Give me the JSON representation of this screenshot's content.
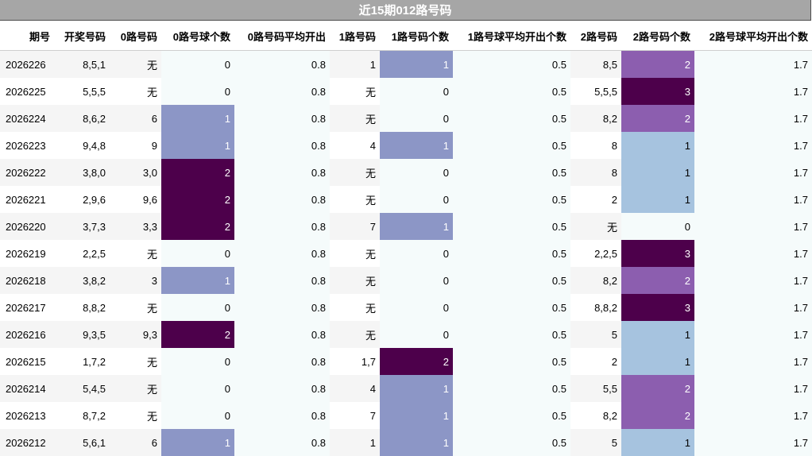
{
  "title": "近15期012路号码",
  "columns": [
    "期号",
    "开奖号码",
    "0路号码",
    "0路号球个数",
    "0路号码平均开出",
    "1路号码",
    "1路号码个数",
    "1路号球平均开出个数",
    "2路号码",
    "2路号码个数",
    "2路号球平均开出个数"
  ],
  "colors": {
    "count_1": "#8c96c6",
    "count_2": "#4d004b",
    "count_3": "#4d004b",
    "count2_1": "#a6c3df",
    "count2_2": "#8c5eaf",
    "count2_3": "#4d004b",
    "stripe_a": "#f5f5f5",
    "stripe_b": "#f5fbfb",
    "white": "#ffffff"
  },
  "chart_data": {
    "type": "table",
    "rows": [
      {
        "period": "2026226",
        "draw": "8,5,1",
        "r0": "无",
        "c0": "0",
        "a0": "0.8",
        "r1": "1",
        "c1": "1",
        "a1": "0.5",
        "r2": "8,5",
        "c2": "2",
        "a2": "1.7"
      },
      {
        "period": "2026225",
        "draw": "5,5,5",
        "r0": "无",
        "c0": "0",
        "a0": "0.8",
        "r1": "无",
        "c1": "0",
        "a1": "0.5",
        "r2": "5,5,5",
        "c2": "3",
        "a2": "1.7"
      },
      {
        "period": "2026224",
        "draw": "8,6,2",
        "r0": "6",
        "c0": "1",
        "a0": "0.8",
        "r1": "无",
        "c1": "0",
        "a1": "0.5",
        "r2": "8,2",
        "c2": "2",
        "a2": "1.7"
      },
      {
        "period": "2026223",
        "draw": "9,4,8",
        "r0": "9",
        "c0": "1",
        "a0": "0.8",
        "r1": "4",
        "c1": "1",
        "a1": "0.5",
        "r2": "8",
        "c2": "1",
        "a2": "1.7"
      },
      {
        "period": "2026222",
        "draw": "3,8,0",
        "r0": "3,0",
        "c0": "2",
        "a0": "0.8",
        "r1": "无",
        "c1": "0",
        "a1": "0.5",
        "r2": "8",
        "c2": "1",
        "a2": "1.7"
      },
      {
        "period": "2026221",
        "draw": "2,9,6",
        "r0": "9,6",
        "c0": "2",
        "a0": "0.8",
        "r1": "无",
        "c1": "0",
        "a1": "0.5",
        "r2": "2",
        "c2": "1",
        "a2": "1.7"
      },
      {
        "period": "2026220",
        "draw": "3,7,3",
        "r0": "3,3",
        "c0": "2",
        "a0": "0.8",
        "r1": "7",
        "c1": "1",
        "a1": "0.5",
        "r2": "无",
        "c2": "0",
        "a2": "1.7"
      },
      {
        "period": "2026219",
        "draw": "2,2,5",
        "r0": "无",
        "c0": "0",
        "a0": "0.8",
        "r1": "无",
        "c1": "0",
        "a1": "0.5",
        "r2": "2,2,5",
        "c2": "3",
        "a2": "1.7"
      },
      {
        "period": "2026218",
        "draw": "3,8,2",
        "r0": "3",
        "c0": "1",
        "a0": "0.8",
        "r1": "无",
        "c1": "0",
        "a1": "0.5",
        "r2": "8,2",
        "c2": "2",
        "a2": "1.7"
      },
      {
        "period": "2026217",
        "draw": "8,8,2",
        "r0": "无",
        "c0": "0",
        "a0": "0.8",
        "r1": "无",
        "c1": "0",
        "a1": "0.5",
        "r2": "8,8,2",
        "c2": "3",
        "a2": "1.7"
      },
      {
        "period": "2026216",
        "draw": "9,3,5",
        "r0": "9,3",
        "c0": "2",
        "a0": "0.8",
        "r1": "无",
        "c1": "0",
        "a1": "0.5",
        "r2": "5",
        "c2": "1",
        "a2": "1.7"
      },
      {
        "period": "2026215",
        "draw": "1,7,2",
        "r0": "无",
        "c0": "0",
        "a0": "0.8",
        "r1": "1,7",
        "c1": "2",
        "a1": "0.5",
        "r2": "2",
        "c2": "1",
        "a2": "1.7"
      },
      {
        "period": "2026214",
        "draw": "5,4,5",
        "r0": "无",
        "c0": "0",
        "a0": "0.8",
        "r1": "4",
        "c1": "1",
        "a1": "0.5",
        "r2": "5,5",
        "c2": "2",
        "a2": "1.7"
      },
      {
        "period": "2026213",
        "draw": "8,7,2",
        "r0": "无",
        "c0": "0",
        "a0": "0.8",
        "r1": "7",
        "c1": "1",
        "a1": "0.5",
        "r2": "8,2",
        "c2": "2",
        "a2": "1.7"
      },
      {
        "period": "2026212",
        "draw": "5,6,1",
        "r0": "6",
        "c0": "1",
        "a0": "0.8",
        "r1": "1",
        "c1": "1",
        "a1": "0.5",
        "r2": "5",
        "c2": "1",
        "a2": "1.7"
      }
    ]
  }
}
